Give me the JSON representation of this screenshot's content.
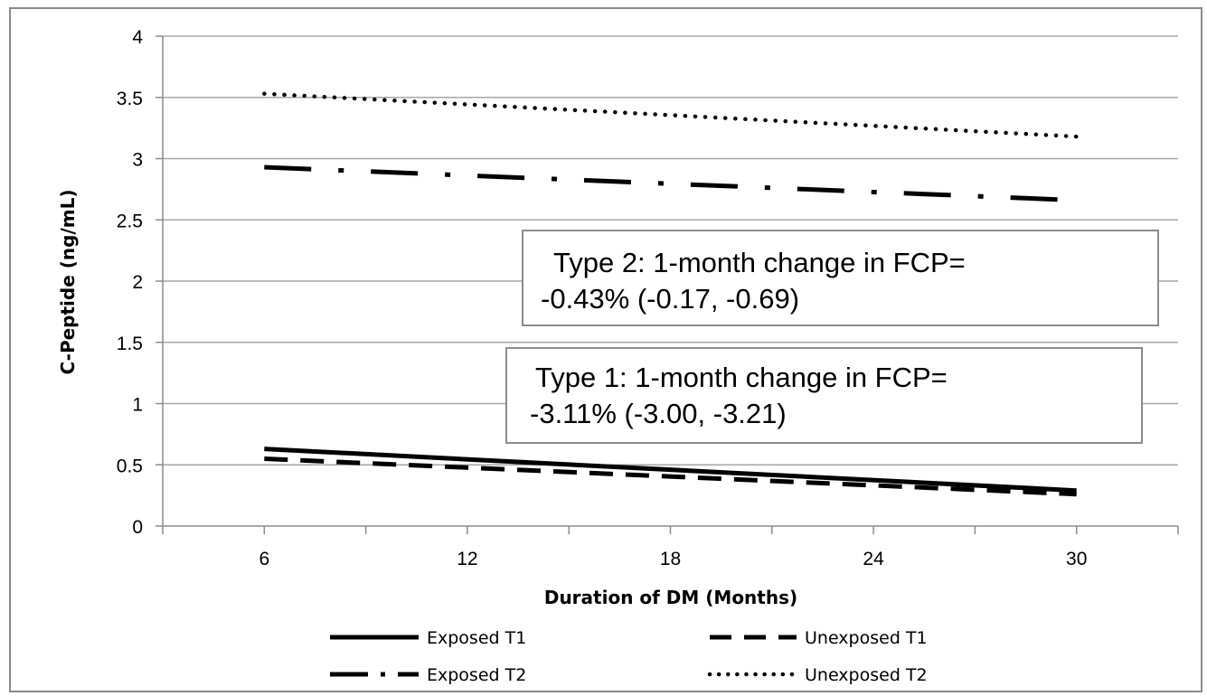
{
  "chart_data": {
    "type": "line",
    "title": "",
    "xlabel": "Duration of DM (Months)",
    "ylabel": "C-Peptide (ng/mL)",
    "x_ticks": [
      "6",
      "12",
      "18",
      "24",
      "30"
    ],
    "y_ticks": [
      "0",
      "0.5",
      "1",
      "1.5",
      "2",
      "2.5",
      "3",
      "3.5",
      "4"
    ],
    "xlim": [
      3,
      33
    ],
    "ylim": [
      0,
      4
    ],
    "grid": "horizontal",
    "legend_position": "bottom",
    "x": [
      6,
      30
    ],
    "series": [
      {
        "name": "Exposed T1",
        "values": [
          0.63,
          0.29
        ],
        "style": "solid"
      },
      {
        "name": "Unexposed T1",
        "values": [
          0.55,
          0.26
        ],
        "style": "dashed"
      },
      {
        "name": "Exposed T2",
        "values": [
          2.93,
          2.66
        ],
        "style": "dash-dot"
      },
      {
        "name": "Unexposed T2",
        "values": [
          3.53,
          3.18
        ],
        "style": "dotted"
      }
    ],
    "annotations": [
      {
        "lines": [
          "Type 2: 1-month change in FCP=",
          "-0.43% (-0.17, -0.69)"
        ]
      },
      {
        "lines": [
          "Type 1: 1-month change in FCP=",
          "-3.11% (-3.00, -3.21)"
        ]
      }
    ],
    "colors": {
      "lines": "#000000",
      "grid": "#a6a6a6",
      "axis": "#8c8c8c",
      "frame": "#8a8a8a"
    }
  }
}
